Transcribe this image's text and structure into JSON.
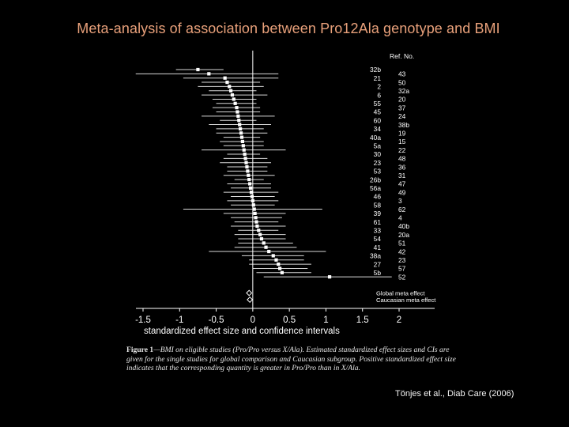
{
  "slide": {
    "title": "Meta-analysis of association between Pro12Ala genotype and BMI",
    "citation": "Tönjes et al., Diab Care (2006)"
  },
  "caption": {
    "label": "Figure 1",
    "text": "—BMI on eligible studies (Pro/Pro versus X/Ala). Estimated standardized effect sizes and CIs are given for the single studies for global comparison and Caucasian subgroup. Positive standardized effect size indicates that the corresponding quantity is greater in Pro/Pro than in X/Ala."
  },
  "colors": {
    "title": "#e8a07a",
    "text": "#ffffff",
    "axis": "#ffffff"
  },
  "chart_data": {
    "type": "scatter",
    "subtype": "forest-plot",
    "xlabel": "standardized effect size and confidence intervals",
    "xlim": [
      -1.5,
      2.0
    ],
    "xticks": [
      -1.5,
      -1,
      -0.5,
      0,
      0.5,
      1,
      1.5,
      2
    ],
    "xtick_labels": [
      "-1.5",
      "-1",
      "-0.5",
      "0",
      "0.5",
      "1",
      "1.5",
      "2"
    ],
    "ref_header": "Ref. No.",
    "reference_line_x": 0,
    "studies": [
      {
        "left_label": "32b",
        "right_label": "",
        "effect": -0.75,
        "ci": [
          -1.05,
          -0.4
        ]
      },
      {
        "left_label": "",
        "right_label": "43",
        "effect": -0.6,
        "ci": [
          -1.6,
          0.35
        ]
      },
      {
        "left_label": "21",
        "right_label": "",
        "effect": -0.38,
        "ci": [
          -0.95,
          0.35
        ]
      },
      {
        "left_label": "",
        "right_label": "50",
        "effect": -0.35,
        "ci": [
          -0.7,
          0.1
        ]
      },
      {
        "left_label": "2",
        "right_label": "",
        "effect": -0.32,
        "ci": [
          -0.75,
          0.15
        ]
      },
      {
        "left_label": "",
        "right_label": "32a",
        "effect": -0.3,
        "ci": [
          -0.6,
          0.05
        ]
      },
      {
        "left_label": "6",
        "right_label": "",
        "effect": -0.28,
        "ci": [
          -0.7,
          0.2
        ]
      },
      {
        "left_label": "",
        "right_label": "20",
        "effect": -0.26,
        "ci": [
          -0.55,
          0.05
        ]
      },
      {
        "left_label": "55",
        "right_label": "",
        "effect": -0.24,
        "ci": [
          -0.5,
          0.05
        ]
      },
      {
        "left_label": "",
        "right_label": "37",
        "effect": -0.22,
        "ci": [
          -0.55,
          0.1
        ]
      },
      {
        "left_label": "45",
        "right_label": "",
        "effect": -0.21,
        "ci": [
          -0.5,
          0.1
        ]
      },
      {
        "left_label": "",
        "right_label": "24",
        "effect": -0.2,
        "ci": [
          -0.7,
          0.3
        ]
      },
      {
        "left_label": "60",
        "right_label": "",
        "effect": -0.19,
        "ci": [
          -0.45,
          0.05
        ]
      },
      {
        "left_label": "",
        "right_label": "38b",
        "effect": -0.18,
        "ci": [
          -0.6,
          0.25
        ]
      },
      {
        "left_label": "34",
        "right_label": "",
        "effect": -0.17,
        "ci": [
          -0.5,
          0.15
        ]
      },
      {
        "left_label": "",
        "right_label": "19",
        "effect": -0.16,
        "ci": [
          -0.5,
          0.2
        ]
      },
      {
        "left_label": "40a",
        "right_label": "",
        "effect": -0.15,
        "ci": [
          -0.4,
          0.1
        ]
      },
      {
        "left_label": "",
        "right_label": "15",
        "effect": -0.14,
        "ci": [
          -0.45,
          0.15
        ]
      },
      {
        "left_label": "5a",
        "right_label": "",
        "effect": -0.13,
        "ci": [
          -0.4,
          0.15
        ]
      },
      {
        "left_label": "",
        "right_label": "22",
        "effect": -0.12,
        "ci": [
          -0.7,
          0.45
        ]
      },
      {
        "left_label": "30",
        "right_label": "",
        "effect": -0.11,
        "ci": [
          -0.35,
          0.1
        ]
      },
      {
        "left_label": "",
        "right_label": "48",
        "effect": -0.1,
        "ci": [
          -0.4,
          0.2
        ]
      },
      {
        "left_label": "23",
        "right_label": "",
        "effect": -0.09,
        "ci": [
          -0.45,
          0.25
        ]
      },
      {
        "left_label": "",
        "right_label": "36",
        "effect": -0.08,
        "ci": [
          -0.35,
          0.2
        ]
      },
      {
        "left_label": "53",
        "right_label": "",
        "effect": -0.07,
        "ci": [
          -0.35,
          0.2
        ]
      },
      {
        "left_label": "",
        "right_label": "31",
        "effect": -0.06,
        "ci": [
          -0.4,
          0.3
        ]
      },
      {
        "left_label": "26b",
        "right_label": "",
        "effect": -0.05,
        "ci": [
          -0.25,
          0.15
        ]
      },
      {
        "left_label": "",
        "right_label": "47",
        "effect": -0.04,
        "ci": [
          -0.35,
          0.25
        ]
      },
      {
        "left_label": "56a",
        "right_label": "",
        "effect": -0.03,
        "ci": [
          -0.3,
          0.25
        ]
      },
      {
        "left_label": "",
        "right_label": "49",
        "effect": -0.02,
        "ci": [
          -0.4,
          0.35
        ]
      },
      {
        "left_label": "46",
        "right_label": "",
        "effect": -0.01,
        "ci": [
          -0.3,
          0.3
        ]
      },
      {
        "left_label": "",
        "right_label": "3",
        "effect": 0.0,
        "ci": [
          -0.35,
          0.35
        ]
      },
      {
        "left_label": "58",
        "right_label": "",
        "effect": 0.01,
        "ci": [
          -0.3,
          0.3
        ]
      },
      {
        "left_label": "",
        "right_label": "62",
        "effect": 0.02,
        "ci": [
          -0.95,
          0.95
        ]
      },
      {
        "left_label": "39",
        "right_label": "",
        "effect": 0.03,
        "ci": [
          -0.4,
          0.45
        ]
      },
      {
        "left_label": "",
        "right_label": "4",
        "effect": 0.04,
        "ci": [
          -0.3,
          0.4
        ]
      },
      {
        "left_label": "61",
        "right_label": "",
        "effect": 0.05,
        "ci": [
          -0.25,
          0.35
        ]
      },
      {
        "left_label": "",
        "right_label": "40b",
        "effect": 0.06,
        "ci": [
          -0.3,
          0.45
        ]
      },
      {
        "left_label": "33",
        "right_label": "",
        "effect": 0.08,
        "ci": [
          -0.2,
          0.35
        ]
      },
      {
        "left_label": "",
        "right_label": "20a",
        "effect": 0.1,
        "ci": [
          -0.25,
          0.45
        ]
      },
      {
        "left_label": "54",
        "right_label": "",
        "effect": 0.12,
        "ci": [
          -0.2,
          0.45
        ]
      },
      {
        "left_label": "",
        "right_label": "51",
        "effect": 0.15,
        "ci": [
          -0.2,
          0.55
        ]
      },
      {
        "left_label": "41",
        "right_label": "",
        "effect": 0.18,
        "ci": [
          -0.25,
          0.6
        ]
      },
      {
        "left_label": "",
        "right_label": "42",
        "effect": 0.22,
        "ci": [
          -0.6,
          1.0
        ]
      },
      {
        "left_label": "38a",
        "right_label": "",
        "effect": 0.28,
        "ci": [
          -0.15,
          0.7
        ]
      },
      {
        "left_label": "",
        "right_label": "23",
        "effect": 0.32,
        "ci": [
          -0.05,
          0.7
        ]
      },
      {
        "left_label": "27",
        "right_label": "",
        "effect": 0.35,
        "ci": [
          -0.05,
          0.8
        ]
      },
      {
        "left_label": "",
        "right_label": "57",
        "effect": 0.37,
        "ci": [
          0.0,
          0.75
        ]
      },
      {
        "left_label": "5b",
        "right_label": "",
        "effect": 0.4,
        "ci": [
          0.05,
          0.8
        ]
      },
      {
        "left_label": "",
        "right_label": "52",
        "effect": 1.05,
        "ci": [
          0.15,
          1.9
        ]
      }
    ],
    "summary": [
      {
        "label": "Global meta effect",
        "effect": -0.05
      },
      {
        "label": "Caucasian meta effect",
        "effect": -0.04
      }
    ]
  }
}
